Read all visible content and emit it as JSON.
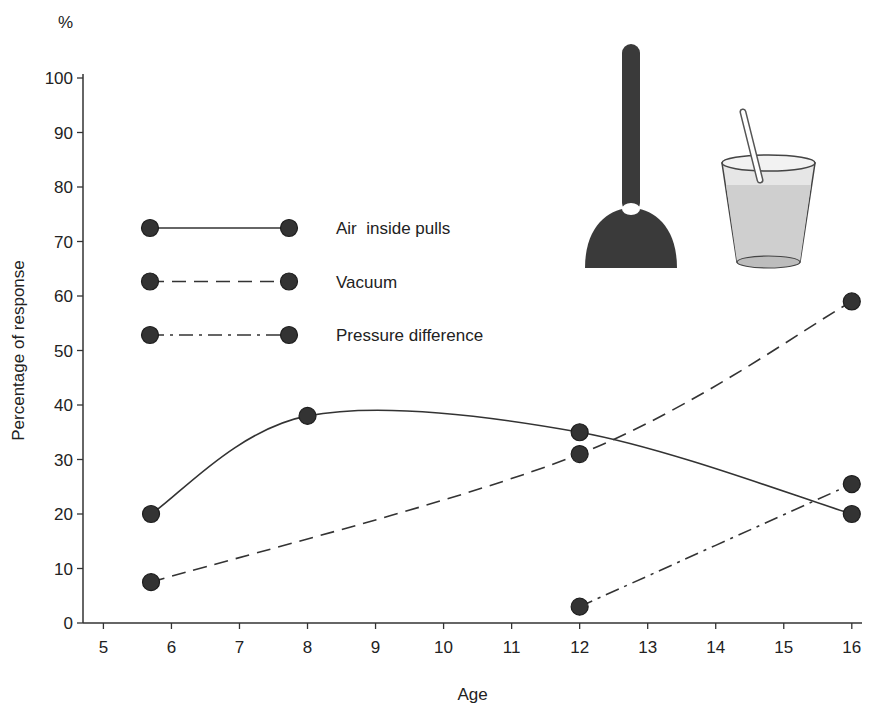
{
  "chart_data": {
    "type": "line",
    "x_label": "Age",
    "y_label": "Percentage of response",
    "annotations": [
      "%"
    ],
    "xlim": [
      4.7,
      16.15
    ],
    "xticks": [
      5,
      6,
      7,
      8,
      9,
      10,
      11,
      12,
      13,
      14,
      15,
      16
    ],
    "ylim": [
      0,
      100
    ],
    "yticks": [
      0,
      10,
      20,
      30,
      40,
      50,
      60,
      70,
      80,
      90,
      100
    ],
    "grid": false,
    "legend": "upper left",
    "series": [
      {
        "name": "Air  inside pulls",
        "color": "#333333",
        "marker": "circle",
        "line_style": "solid",
        "x": [
          5.7,
          8,
          12,
          16
        ],
        "values": [
          20,
          38,
          35,
          20
        ]
      },
      {
        "name": "Vacuum",
        "color": "#333333",
        "marker": "circle",
        "line_style": "dashed",
        "x": [
          5.7,
          12,
          16
        ],
        "values": [
          7.5,
          31,
          59
        ]
      },
      {
        "name": "Pressure difference",
        "color": "#333333",
        "marker": "circle",
        "line_style": "dashdot",
        "x": [
          12,
          16
        ],
        "values": [
          3,
          25.5
        ]
      }
    ]
  }
}
